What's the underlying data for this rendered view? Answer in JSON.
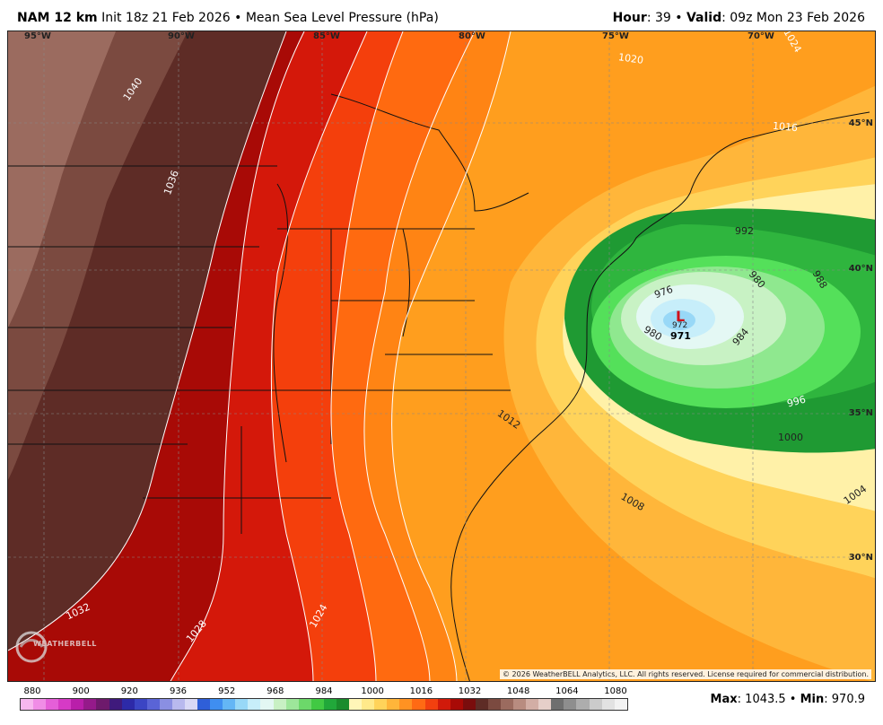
{
  "header": {
    "model": "NAM 12 km",
    "init": "Init 18z 21 Feb 2026",
    "sep": "•",
    "field": "Mean Sea Level Pressure (hPa)",
    "hour_label": "Hour",
    "hour_value": ": 39",
    "valid_label": "Valid",
    "valid_value": ": 09z Mon 23 Feb 2026"
  },
  "map": {
    "longitude_labels": [
      "95°W",
      "90°W",
      "85°W",
      "80°W",
      "75°W",
      "70°W"
    ],
    "latitude_labels": [
      "45°N",
      "40°N",
      "35°N",
      "30°N"
    ],
    "isobar_labels": [
      "1040",
      "1036",
      "1032",
      "1028",
      "1024",
      "1024",
      "1020",
      "1016",
      "1012",
      "1008",
      "1004",
      "1000",
      "996",
      "992",
      "988",
      "984",
      "980",
      "980",
      "976",
      "972"
    ],
    "low_center_value": "971",
    "low_symbol": "L",
    "copyright": "© 2026 WeatherBELL Analytics, LLC. All rights reserved. License required for commercial distribution.",
    "logo_text": "WEATHERBELL"
  },
  "scale": {
    "ticks": [
      "880",
      "900",
      "920",
      "936",
      "952",
      "968",
      "984",
      "1000",
      "1016",
      "1032",
      "1048",
      "1064",
      "1080"
    ],
    "colors": [
      "#f7b7ef",
      "#f08de6",
      "#e55fd8",
      "#d63ac6",
      "#b91faa",
      "#951a8a",
      "#6e1a6c",
      "#3f1a7c",
      "#2d2aa8",
      "#3b45c4",
      "#5a64d6",
      "#8a8fe2",
      "#b8b9ee",
      "#d9d9f6",
      "#2f5fd8",
      "#3f8ef0",
      "#64b6f5",
      "#98d8f7",
      "#c7eefa",
      "#e3f7f3",
      "#c8f0c4",
      "#9de69a",
      "#6cd86a",
      "#41c943",
      "#21a83a",
      "#1a8c2c",
      "#fff6b8",
      "#ffe98a",
      "#ffd35a",
      "#ffb53a",
      "#ff9222",
      "#ff6a14",
      "#f2400f",
      "#d11a0a",
      "#a80a06",
      "#7a0d0d",
      "#5e2c26",
      "#7b4a40",
      "#9b6b5f",
      "#b88c80",
      "#d2aea5",
      "#e6cfc9",
      "#6f6f6f",
      "#8e8e8e",
      "#adadad",
      "#cbcbcb",
      "#e2e2e2",
      "#f2f2f2"
    ]
  },
  "stats": {
    "max_label": "Max",
    "max_value": ": 1043.5",
    "min_label": "Min",
    "min_value": ": 970.9"
  }
}
